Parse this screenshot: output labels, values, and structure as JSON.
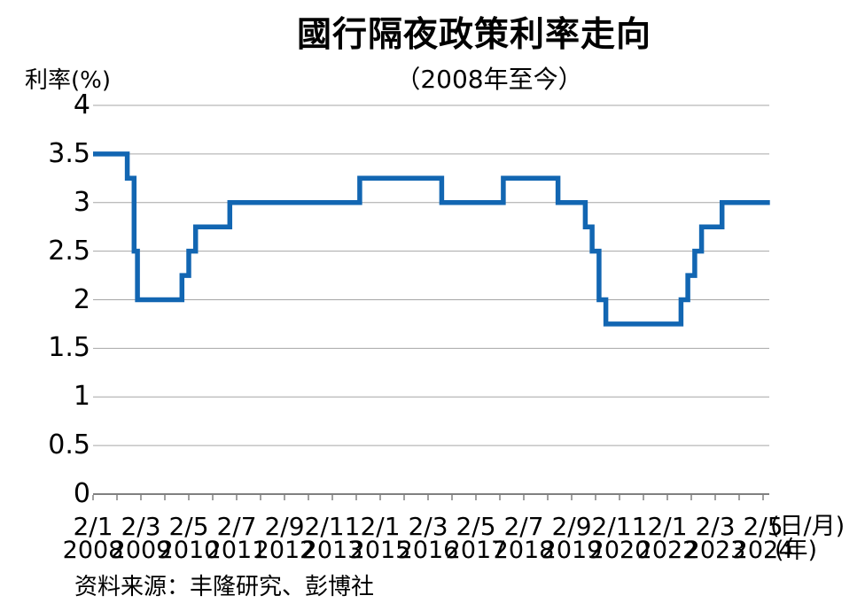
{
  "page": {
    "title": "國行隔夜政策利率走向",
    "subtitle": "（2008年至今）",
    "y_axis_label": "利率(%)",
    "x_unit_day_month": "(日/月)",
    "x_unit_year": "(年)",
    "source": "资料来源：丰隆研究、彭博社"
  },
  "colors": {
    "line": "#1266B2",
    "grid": "#A6A6A6",
    "axis": "#808080",
    "text": "#000000",
    "background": "#FFFFFF"
  },
  "chart_data": {
    "type": "line",
    "step": true,
    "title": "國行隔夜政策利率走向",
    "subtitle": "（2008年至今）",
    "ylabel": "利率(%)",
    "xlabel_units": [
      "(日/月)",
      "(年)"
    ],
    "ylim": [
      0,
      4
    ],
    "ytick_step": 0.5,
    "ytick_labels": [
      "0",
      "0.5",
      "1",
      "1.5",
      "2",
      "2.5",
      "3",
      "3.5",
      "4"
    ],
    "grid": true,
    "legend_position": "none",
    "x_start": "2008-01",
    "x_end": "2024-07",
    "xtick_label_interval_months": 14,
    "xtick_minor_interval_months": 7,
    "xticks": [
      {
        "day_month": "2/1",
        "year": "2008"
      },
      {
        "day_month": "2/3",
        "year": "2009"
      },
      {
        "day_month": "2/5",
        "year": "2010"
      },
      {
        "day_month": "2/7",
        "year": "2011"
      },
      {
        "day_month": "2/9",
        "year": "2012"
      },
      {
        "day_month": "2/11",
        "year": "2013"
      },
      {
        "day_month": "2/1",
        "year": "2015"
      },
      {
        "day_month": "2/3",
        "year": "2016"
      },
      {
        "day_month": "2/5",
        "year": "2017"
      },
      {
        "day_month": "2/7",
        "year": "2018"
      },
      {
        "day_month": "2/9",
        "year": "2019"
      },
      {
        "day_month": "2/11",
        "year": "2020"
      },
      {
        "day_month": "2/1",
        "year": "2022"
      },
      {
        "day_month": "2/3",
        "year": "2023"
      },
      {
        "day_month": "2/5",
        "year": "2024"
      }
    ],
    "series": [
      {
        "name": "隔夜政策利率",
        "points": [
          {
            "date": "2008-01",
            "rate": 3.5
          },
          {
            "date": "2008-11",
            "rate": 3.25
          },
          {
            "date": "2009-01",
            "rate": 2.5
          },
          {
            "date": "2009-02",
            "rate": 2.0
          },
          {
            "date": "2010-03",
            "rate": 2.25
          },
          {
            "date": "2010-05",
            "rate": 2.5
          },
          {
            "date": "2010-07",
            "rate": 2.75
          },
          {
            "date": "2011-05",
            "rate": 3.0
          },
          {
            "date": "2014-07",
            "rate": 3.25
          },
          {
            "date": "2016-07",
            "rate": 3.0
          },
          {
            "date": "2018-01",
            "rate": 3.25
          },
          {
            "date": "2019-05",
            "rate": 3.0
          },
          {
            "date": "2020-01",
            "rate": 2.75
          },
          {
            "date": "2020-03",
            "rate": 2.5
          },
          {
            "date": "2020-05",
            "rate": 2.0
          },
          {
            "date": "2020-07",
            "rate": 1.75
          },
          {
            "date": "2022-05",
            "rate": 2.0
          },
          {
            "date": "2022-07",
            "rate": 2.25
          },
          {
            "date": "2022-09",
            "rate": 2.5
          },
          {
            "date": "2022-11",
            "rate": 2.75
          },
          {
            "date": "2023-05",
            "rate": 3.0
          }
        ]
      }
    ]
  }
}
